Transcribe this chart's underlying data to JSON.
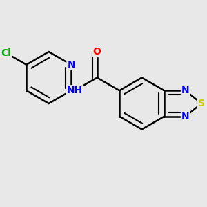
{
  "background_color": "#e8e8e8",
  "bond_color": "#000000",
  "atom_colors": {
    "N": "#0000ff",
    "O": "#ff0000",
    "S": "#cccc00",
    "Cl": "#00aa00",
    "C": "#000000",
    "H": "#000000"
  },
  "bond_width": 1.8,
  "figsize": [
    3.0,
    3.0
  ],
  "dpi": 100
}
